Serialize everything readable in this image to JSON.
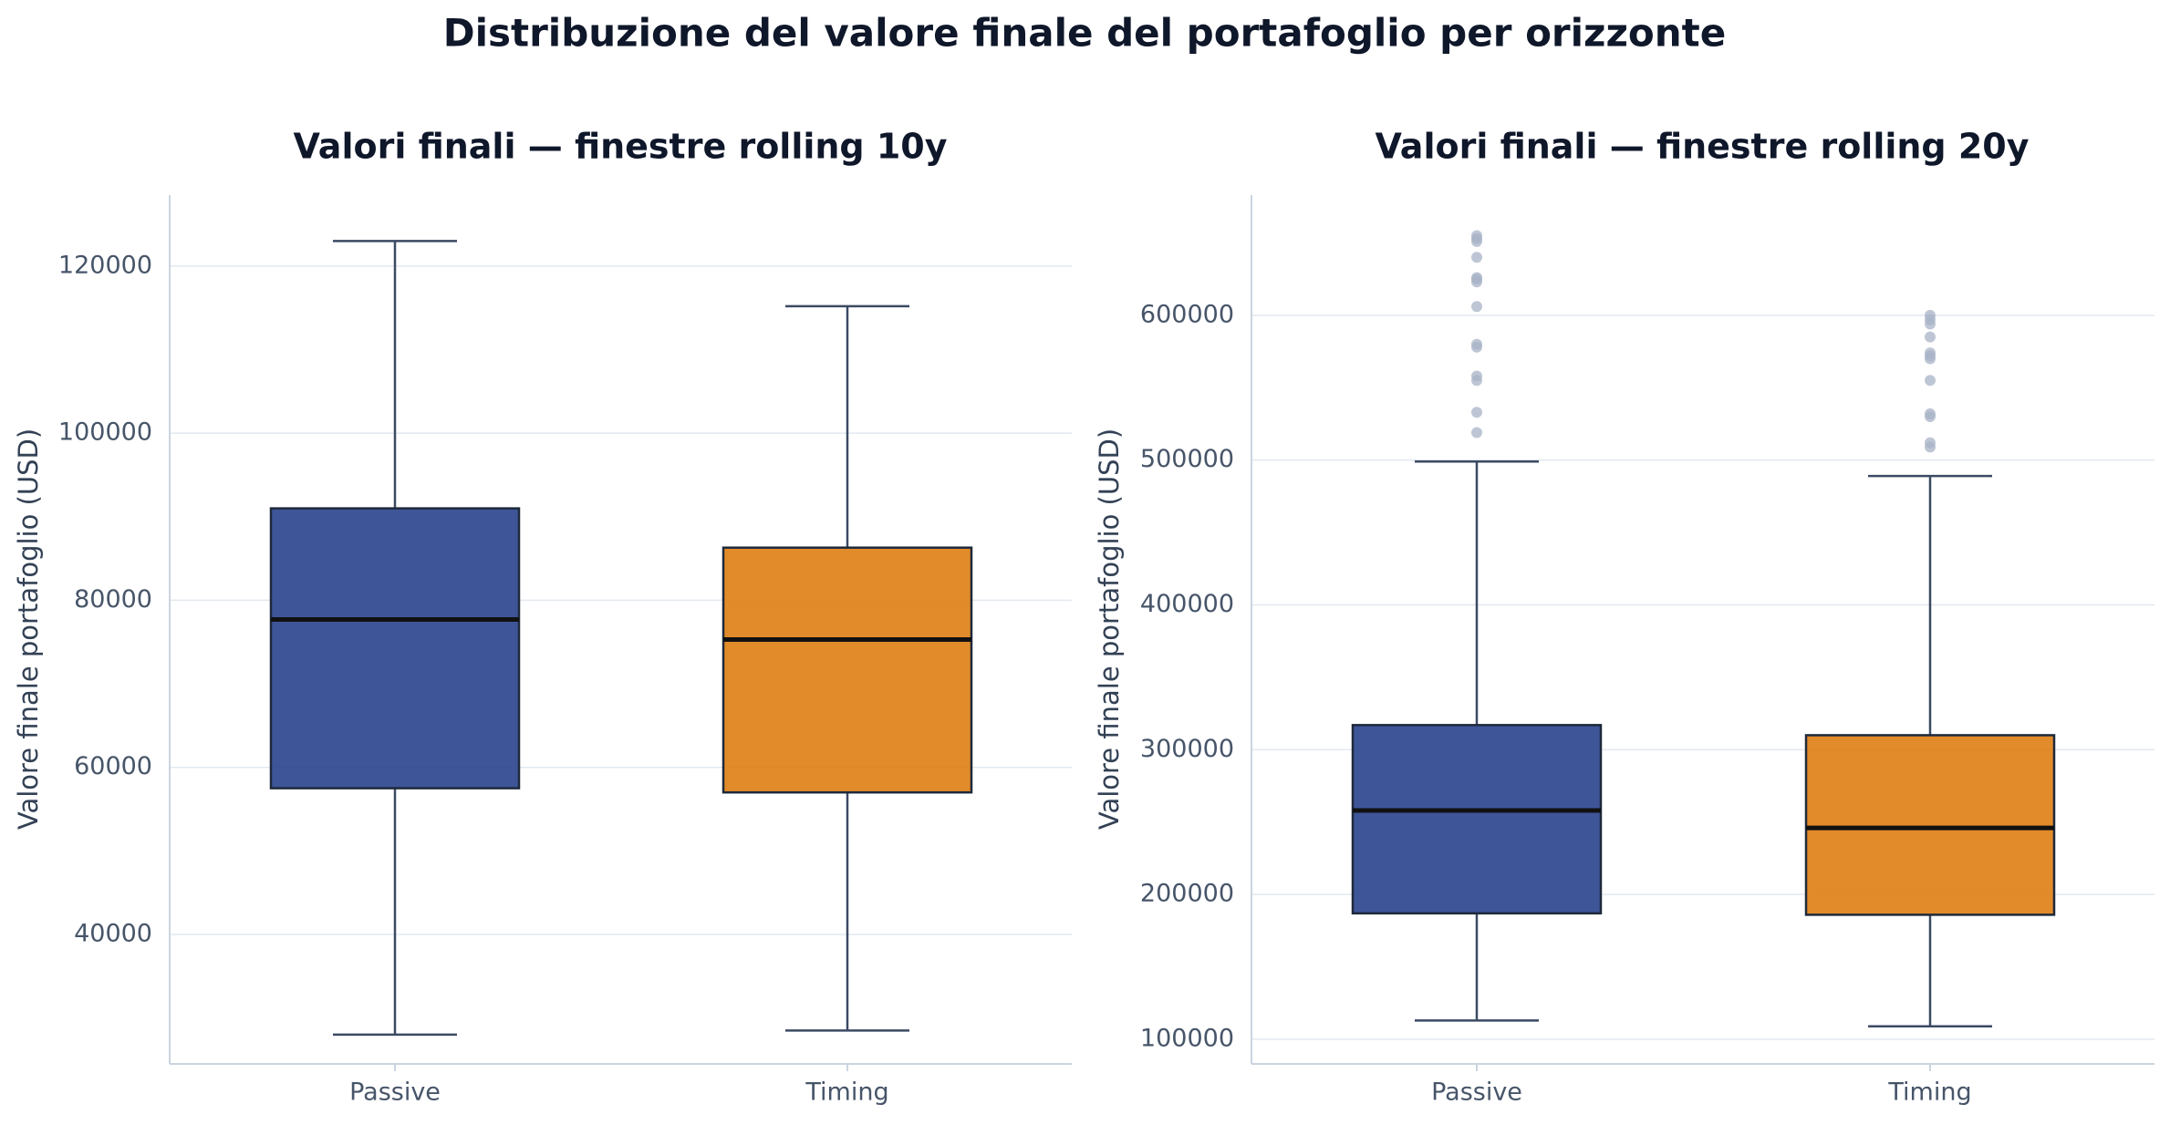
{
  "figure": {
    "title": "Distribuzione del valore finale del portafoglio per orizzonte"
  },
  "colors": {
    "passive": "#2e468f",
    "timing": "#de8118",
    "median": "#111111",
    "box_edge": "#1e293b",
    "whisker": "#3b4a63",
    "outlier": "#a8b3c7",
    "grid": "#e2e8f0",
    "spine": "#cbd5e1"
  },
  "chart_data": [
    {
      "type": "box",
      "title": "Valori finali — finestre rolling 10y",
      "xlabel": "",
      "ylabel": "Valore finale portafoglio (USD)",
      "categories": [
        "Passive",
        "Timing"
      ],
      "ylim": [
        24500,
        128500
      ],
      "yticks": [
        40000,
        60000,
        80000,
        100000,
        120000
      ],
      "ytick_labels": [
        "40000",
        "60000",
        "80000",
        "100000",
        "120000"
      ],
      "grid": true,
      "boxes": [
        {
          "name": "Passive",
          "whislo": 28000,
          "q1": 57500,
          "med": 77700,
          "q3": 91000,
          "whishi": 123000,
          "fliers": []
        },
        {
          "name": "Timing",
          "whislo": 28500,
          "q1": 57000,
          "med": 75300,
          "q3": 86300,
          "whishi": 115200,
          "fliers": []
        }
      ]
    },
    {
      "type": "box",
      "title": "Valori finali — finestre rolling 20y",
      "xlabel": "",
      "ylabel": "Valore finale portafoglio (USD)",
      "categories": [
        "Passive",
        "Timing"
      ],
      "ylim": [
        83000,
        683000
      ],
      "yticks": [
        100000,
        200000,
        300000,
        400000,
        500000,
        600000
      ],
      "ytick_labels": [
        "100000",
        "200000",
        "300000",
        "400000",
        "500000",
        "600000"
      ],
      "grid": true,
      "boxes": [
        {
          "name": "Passive",
          "whislo": 113000,
          "q1": 187000,
          "med": 258000,
          "q3": 317000,
          "whishi": 499000,
          "fliers": [
            519000,
            533000,
            555000,
            558000,
            578000,
            580000,
            606000,
            623000,
            625000,
            626000,
            640000,
            651000,
            653000,
            655000
          ]
        },
        {
          "name": "Timing",
          "whislo": 109000,
          "q1": 186000,
          "med": 246000,
          "q3": 310000,
          "whishi": 489000,
          "fliers": [
            509000,
            512000,
            530000,
            532000,
            555000,
            570000,
            572000,
            574000,
            585000,
            594000,
            597000,
            600000
          ]
        }
      ]
    }
  ]
}
